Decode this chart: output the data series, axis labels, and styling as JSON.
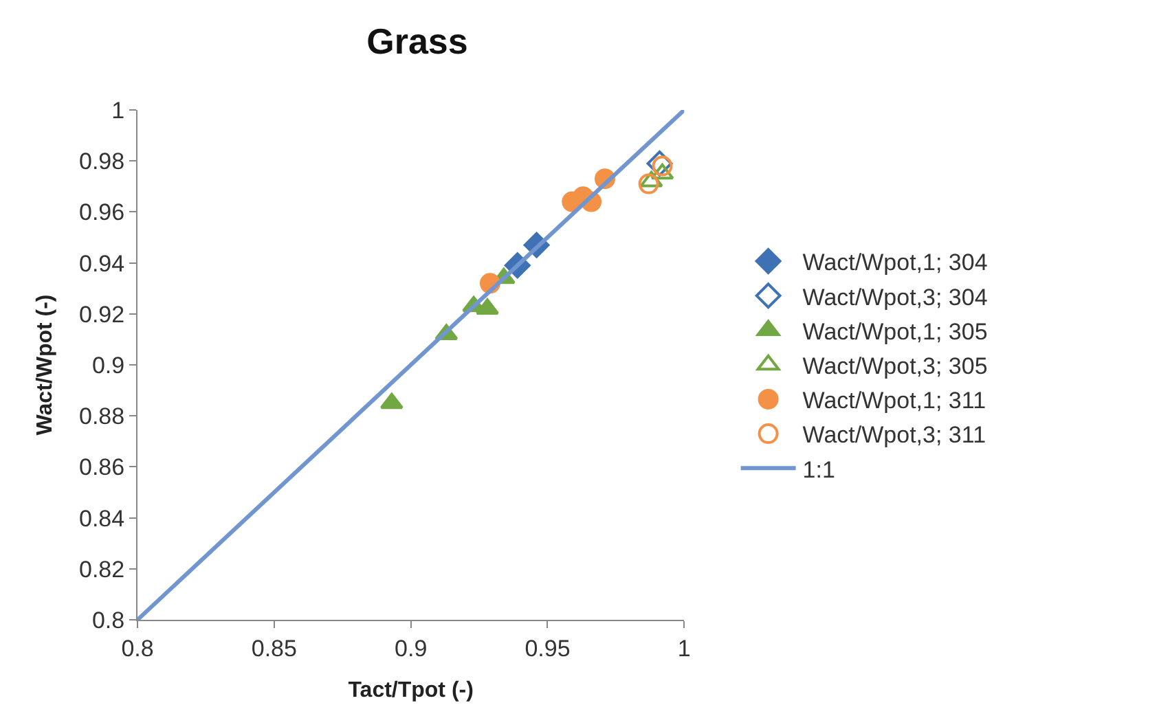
{
  "chart_data": {
    "type": "scatter",
    "title": "Grass",
    "xlabel": "Tact/Tpot (-)",
    "ylabel": "Wact/Wpot (-)",
    "xlim": [
      0.8,
      1
    ],
    "xticks": [
      0.8,
      0.85,
      0.9,
      0.95,
      1
    ],
    "ylim": [
      0.8,
      1
    ],
    "yticks": [
      0.8,
      0.82,
      0.84,
      0.86,
      0.88,
      0.9,
      0.92,
      0.94,
      0.96,
      0.98,
      1
    ],
    "legend": "right",
    "series": [
      {
        "name": "Wact/Wpot,1; 304",
        "color": "#3f72b5",
        "marker": "diamond",
        "x": [
          0.939,
          0.946
        ],
        "values": [
          0.939,
          0.947
        ]
      },
      {
        "name": "Wact/Wpot,3; 304",
        "color": "#3f72b5",
        "marker": "diamond",
        "x": [
          0.991
        ],
        "values": [
          0.979
        ]
      },
      {
        "name": "Wact/Wpot,1; 305",
        "color": "#72a844",
        "marker": "triangle",
        "x": [
          0.893,
          0.913,
          0.923,
          0.928,
          0.934
        ],
        "values": [
          0.885,
          0.912,
          0.923,
          0.922,
          0.934
        ]
      },
      {
        "name": "Wact/Wpot,3; 305",
        "color": "#72a844",
        "marker": "triangle",
        "x": [
          0.992,
          0.988
        ],
        "values": [
          0.975,
          0.972
        ]
      },
      {
        "name": "Wact/Wpot,1; 311",
        "color": "#f39247",
        "marker": "circle",
        "x": [
          0.929,
          0.959,
          0.963,
          0.966,
          0.971
        ],
        "values": [
          0.932,
          0.964,
          0.966,
          0.964,
          0.973
        ]
      },
      {
        "name": "Wact/Wpot,3; 311",
        "color": "#f39247",
        "marker": "circle",
        "x": [
          0.987,
          0.992
        ],
        "values": [
          0.971,
          0.978
        ]
      },
      {
        "name": "1:1",
        "type": "line",
        "color": "#7196cf",
        "marker": "none",
        "x": [
          0.8,
          1
        ],
        "values": [
          0.8,
          1
        ]
      }
    ]
  }
}
